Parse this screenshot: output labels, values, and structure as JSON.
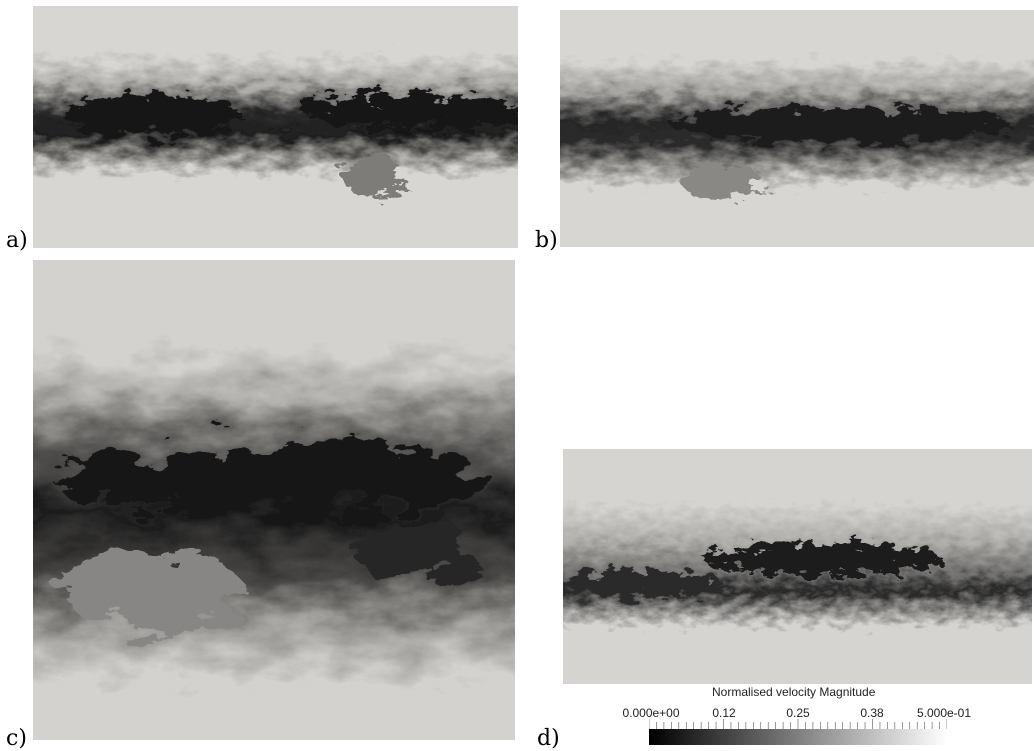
{
  "panels": [
    {
      "id": "a",
      "label": "a)"
    },
    {
      "id": "b",
      "label": "b)"
    },
    {
      "id": "c",
      "label": "c)"
    },
    {
      "id": "d",
      "label": "d)"
    }
  ],
  "colorbar": {
    "title": "Normalised velocity Magnitude",
    "ticks": [
      "0.000e+00",
      "0.12",
      "0.25",
      "0.38",
      "5.000e-01"
    ],
    "range": [
      0,
      0.5
    ],
    "colormap": "grayscale",
    "color_low": "#000000",
    "color_high": "#ffffff"
  },
  "colors": {
    "background_field": "#d6d4d0",
    "turbulent_core": "#1a1a1a"
  }
}
